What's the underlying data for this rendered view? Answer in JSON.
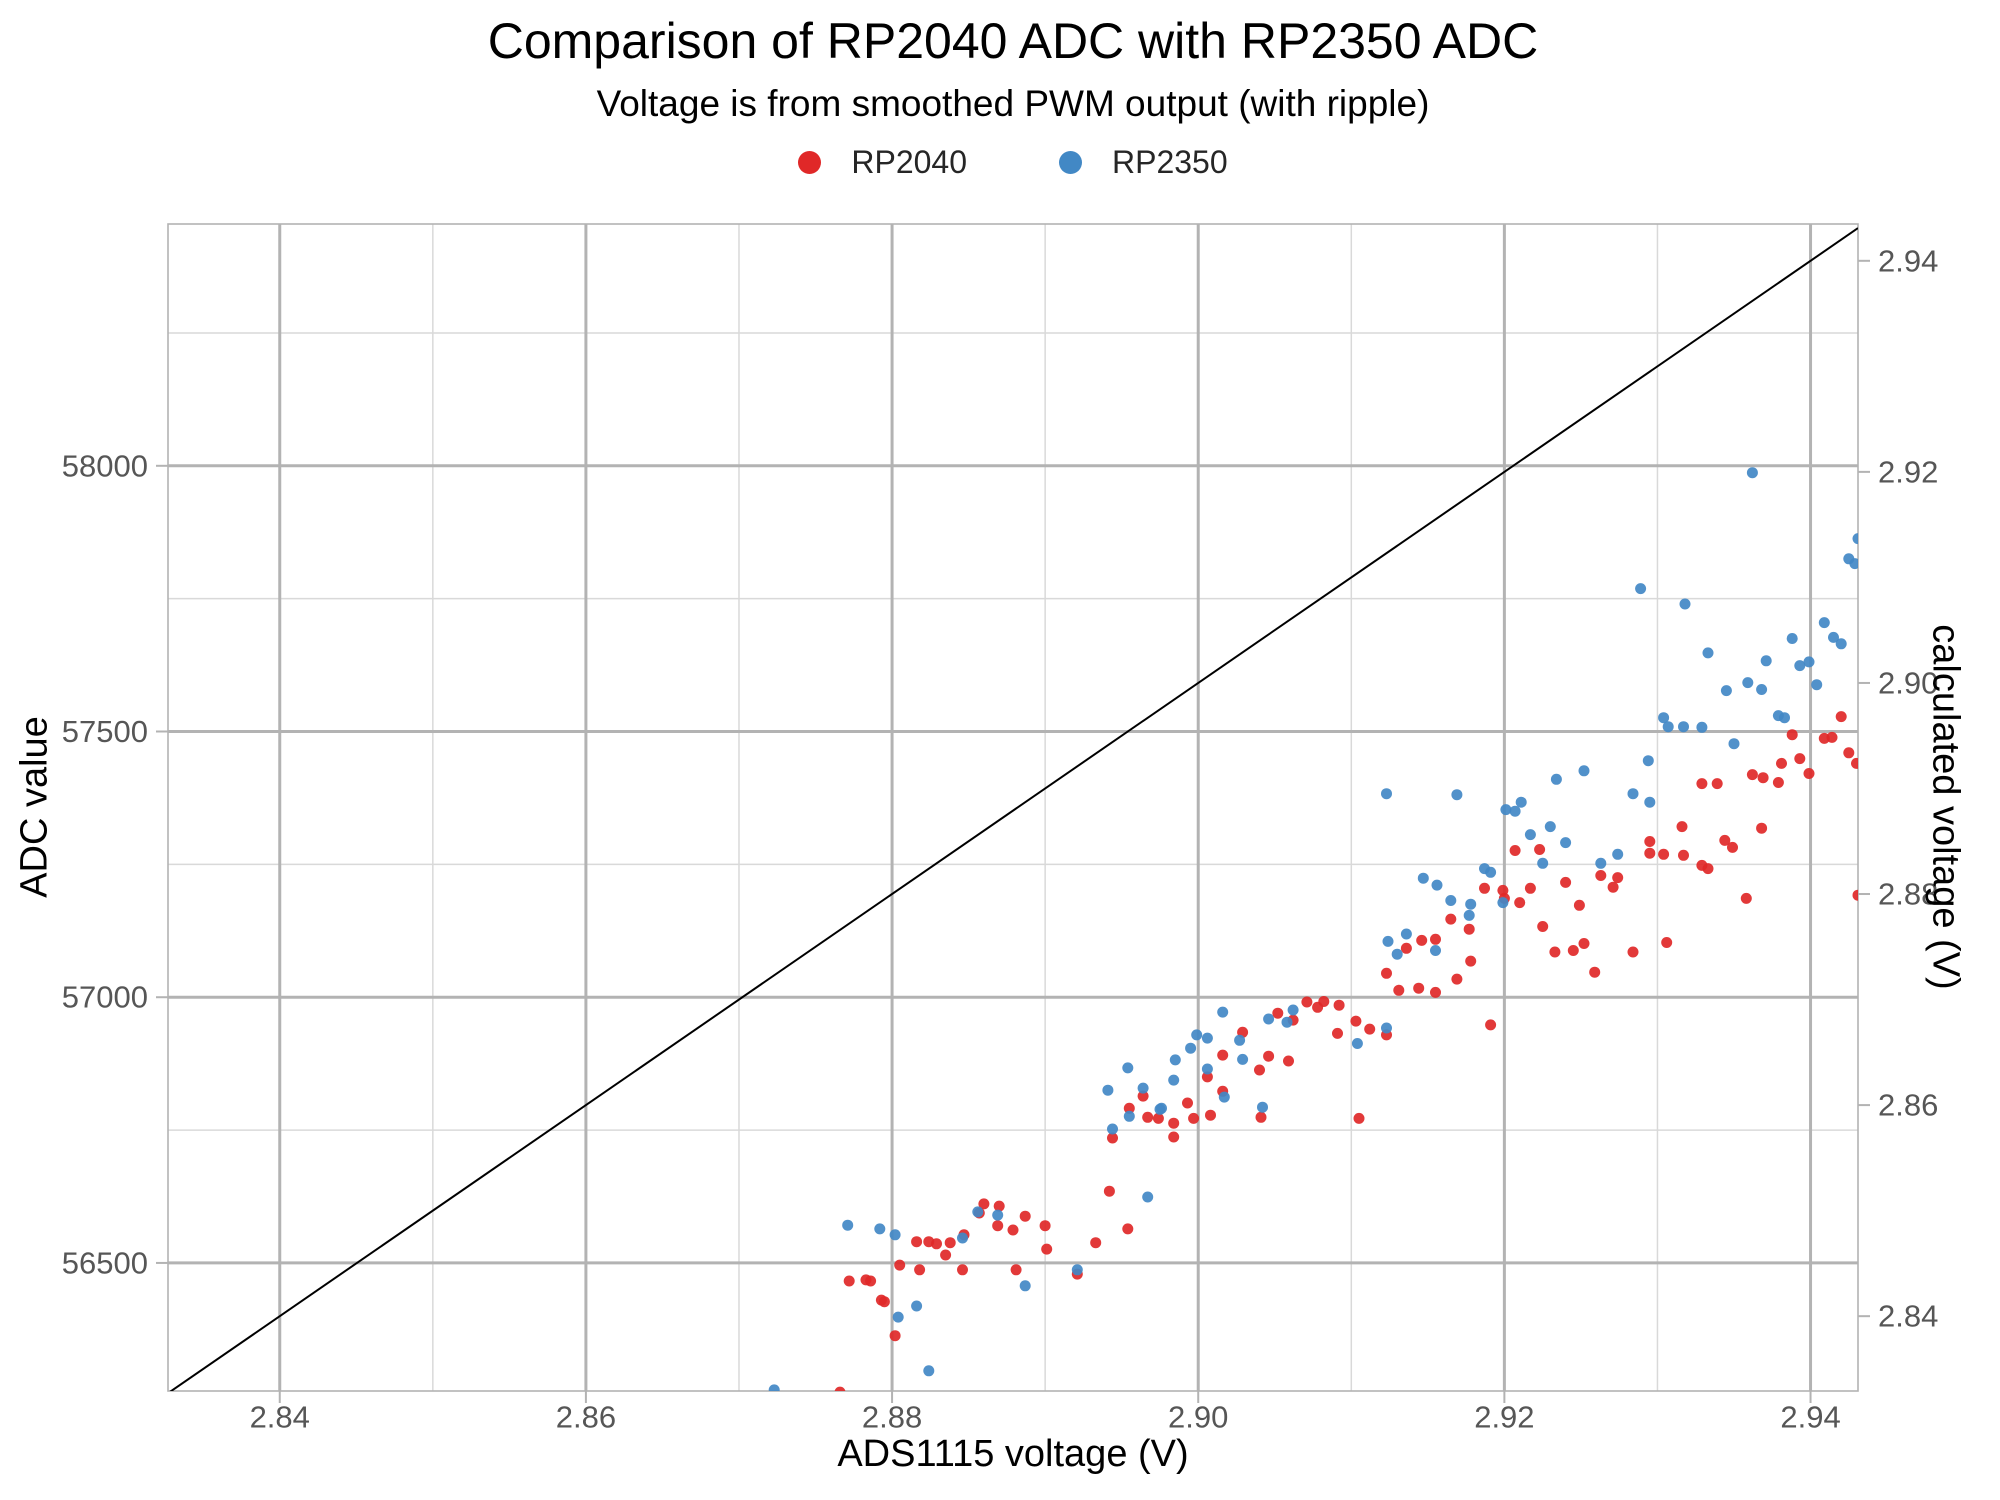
{
  "header": {
    "title": "Comparison of RP2040 ADC with RP2350 ADC",
    "subtitle": "Voltage is from smoothed PWM output (with ripple)"
  },
  "legend": {
    "items": [
      {
        "label": "RP2040",
        "color": "#e02828"
      },
      {
        "label": "RP2350",
        "color": "#4288c5"
      }
    ]
  },
  "axes": {
    "x": {
      "label": "ADS1115 voltage (V)"
    },
    "y_left": {
      "label": "ADC value"
    },
    "y_right": {
      "label": "calculated voltage (V)"
    }
  },
  "chart_data": {
    "type": "scatter",
    "title": "Comparison of RP2040 ADC with RP2350 ADC",
    "subtitle": "Voltage is from smoothed PWM output (with ripple)",
    "xlabel": "ADS1115 voltage (V)",
    "ylabel": "ADC value",
    "ylabel_right": "calculated voltage (V)",
    "x_range": [
      2.8327,
      2.9431
    ],
    "y_range_adc": [
      56259,
      58455
    ],
    "x_ticks": [
      2.84,
      2.86,
      2.88,
      2.9,
      2.92,
      2.94
    ],
    "x_tick_labels": [
      "2.84",
      "2.86",
      "2.88",
      "2.90",
      "2.92",
      "2.94"
    ],
    "x_minor_ticks": [
      2.85,
      2.87,
      2.89,
      2.91,
      2.93
    ],
    "y_ticks_adc": [
      56500,
      57000,
      57500,
      58000
    ],
    "y_tick_labels": [
      "56500",
      "57000",
      "57500",
      "58000"
    ],
    "y_minor_ticks_adc": [
      56750,
      57250,
      57750,
      58250
    ],
    "right_ticks_volts": [
      2.84,
      2.86,
      2.88,
      2.9,
      2.92,
      2.94
    ],
    "right_tick_labels": [
      "2.84",
      "2.86",
      "2.88",
      "2.90",
      "2.92",
      "2.94"
    ],
    "right_axis_conversion": "voltage = adc * 3.3 / 65535",
    "identity_line": {
      "description": "identity reference line: calculated voltage = ADS1115 voltage",
      "color": "#000000"
    },
    "grid": {
      "major_color": "#b3b3b3",
      "minor_color": "#d9d9d9",
      "spine_color": "#b3b3b3",
      "tick_label_color": "#565656"
    },
    "legend_position": "top center",
    "series": [
      {
        "name": "RP2040",
        "color": "#e02828",
        "points": [
          [
            2.8766,
            56257
          ],
          [
            2.8772,
            56466
          ],
          [
            2.8783,
            56468
          ],
          [
            2.8786,
            56466
          ],
          [
            2.8793,
            56430
          ],
          [
            2.8795,
            56427
          ],
          [
            2.8802,
            56363
          ],
          [
            2.8805,
            56496
          ],
          [
            2.8816,
            56540
          ],
          [
            2.8818,
            56487
          ],
          [
            2.8824,
            56540
          ],
          [
            2.8829,
            56536
          ],
          [
            2.8835,
            56515
          ],
          [
            2.8838,
            56538
          ],
          [
            2.8846,
            56487
          ],
          [
            2.8847,
            56553
          ],
          [
            2.8857,
            56594
          ],
          [
            2.886,
            56611
          ],
          [
            2.8869,
            56570
          ],
          [
            2.887,
            56607
          ],
          [
            2.8879,
            56562
          ],
          [
            2.8881,
            56487
          ],
          [
            2.8887,
            56588
          ],
          [
            2.89,
            56570
          ],
          [
            2.8901,
            56526
          ],
          [
            2.8921,
            56479
          ],
          [
            2.8933,
            56538
          ],
          [
            2.8942,
            56635
          ],
          [
            2.8944,
            56735
          ],
          [
            2.8954,
            56564
          ],
          [
            2.8955,
            56791
          ],
          [
            2.8964,
            56814
          ],
          [
            2.8967,
            56774
          ],
          [
            2.8974,
            56772
          ],
          [
            2.8984,
            56763
          ],
          [
            2.8984,
            56737
          ],
          [
            2.8993,
            56801
          ],
          [
            2.8997,
            56772
          ],
          [
            2.9006,
            56850
          ],
          [
            2.9008,
            56778
          ],
          [
            2.9016,
            56823
          ],
          [
            2.9016,
            56891
          ],
          [
            2.9029,
            56934
          ],
          [
            2.904,
            56863
          ],
          [
            2.9041,
            56774
          ],
          [
            2.9046,
            56889
          ],
          [
            2.9052,
            56970
          ],
          [
            2.9059,
            56880
          ],
          [
            2.9062,
            56957
          ],
          [
            2.9071,
            56991
          ],
          [
            2.9078,
            56981
          ],
          [
            2.9082,
            56992
          ],
          [
            2.9091,
            56932
          ],
          [
            2.9092,
            56985
          ],
          [
            2.9103,
            56955
          ],
          [
            2.9105,
            56772
          ],
          [
            2.9112,
            56940
          ],
          [
            2.9123,
            56929
          ],
          [
            2.9123,
            57045
          ],
          [
            2.9131,
            57013
          ],
          [
            2.9136,
            57092
          ],
          [
            2.9144,
            57017
          ],
          [
            2.9146,
            57107
          ],
          [
            2.9155,
            57109
          ],
          [
            2.9155,
            57009
          ],
          [
            2.9165,
            57147
          ],
          [
            2.9169,
            57034
          ],
          [
            2.9177,
            57128
          ],
          [
            2.9178,
            57068
          ],
          [
            2.9187,
            57205
          ],
          [
            2.9191,
            56948
          ],
          [
            2.9199,
            57201
          ],
          [
            2.92,
            57186
          ],
          [
            2.9207,
            57276
          ],
          [
            2.921,
            57178
          ],
          [
            2.9217,
            57205
          ],
          [
            2.9223,
            57278
          ],
          [
            2.9225,
            57133
          ],
          [
            2.9233,
            57085
          ],
          [
            2.924,
            57216
          ],
          [
            2.9245,
            57088
          ],
          [
            2.9249,
            57173
          ],
          [
            2.9252,
            57101
          ],
          [
            2.9259,
            57047
          ],
          [
            2.9263,
            57229
          ],
          [
            2.9271,
            57207
          ],
          [
            2.9274,
            57225
          ],
          [
            2.9284,
            57085
          ],
          [
            2.9295,
            57293
          ],
          [
            2.9295,
            57271
          ],
          [
            2.9304,
            57269
          ],
          [
            2.9306,
            57103
          ],
          [
            2.9316,
            57321
          ],
          [
            2.9317,
            57267
          ],
          [
            2.9329,
            57402
          ],
          [
            2.9329,
            57248
          ],
          [
            2.9333,
            57242
          ],
          [
            2.9339,
            57402
          ],
          [
            2.9344,
            57295
          ],
          [
            2.9349,
            57282
          ],
          [
            2.9358,
            57186
          ],
          [
            2.9362,
            57419
          ],
          [
            2.9368,
            57318
          ],
          [
            2.9369,
            57413
          ],
          [
            2.9379,
            57404
          ],
          [
            2.9381,
            57440
          ],
          [
            2.9388,
            57494
          ],
          [
            2.9393,
            57449
          ],
          [
            2.9399,
            57421
          ],
          [
            2.9409,
            57487
          ],
          [
            2.9414,
            57489
          ],
          [
            2.942,
            57528
          ],
          [
            2.9425,
            57460
          ],
          [
            2.943,
            57440
          ],
          [
            2.9431,
            57192
          ]
        ]
      },
      {
        "name": "RP2350",
        "color": "#4288c5",
        "points": [
          [
            2.8723,
            56261
          ],
          [
            2.8771,
            56571
          ],
          [
            2.8792,
            56564
          ],
          [
            2.8802,
            56553
          ],
          [
            2.8804,
            56398
          ],
          [
            2.8816,
            56419
          ],
          [
            2.8824,
            56297
          ],
          [
            2.8846,
            56547
          ],
          [
            2.8856,
            56596
          ],
          [
            2.8869,
            56590
          ],
          [
            2.8887,
            56457
          ],
          [
            2.8921,
            56487
          ],
          [
            2.8941,
            56825
          ],
          [
            2.8944,
            56752
          ],
          [
            2.8954,
            56867
          ],
          [
            2.8955,
            56776
          ],
          [
            2.8964,
            56829
          ],
          [
            2.8967,
            56624
          ],
          [
            2.8975,
            56789
          ],
          [
            2.8976,
            56791
          ],
          [
            2.8984,
            56844
          ],
          [
            2.8985,
            56882
          ],
          [
            2.8995,
            56904
          ],
          [
            2.8999,
            56929
          ],
          [
            2.9006,
            56923
          ],
          [
            2.9006,
            56865
          ],
          [
            2.9016,
            56972
          ],
          [
            2.9017,
            56812
          ],
          [
            2.9027,
            56919
          ],
          [
            2.9029,
            56883
          ],
          [
            2.9042,
            56793
          ],
          [
            2.9046,
            56959
          ],
          [
            2.9058,
            56953
          ],
          [
            2.9062,
            56976
          ],
          [
            2.9104,
            56913
          ],
          [
            2.9123,
            56942
          ],
          [
            2.9123,
            57383
          ],
          [
            2.9124,
            57105
          ],
          [
            2.913,
            57081
          ],
          [
            2.9136,
            57119
          ],
          [
            2.9147,
            57224
          ],
          [
            2.9155,
            57088
          ],
          [
            2.9156,
            57211
          ],
          [
            2.9165,
            57182
          ],
          [
            2.9169,
            57381
          ],
          [
            2.9177,
            57154
          ],
          [
            2.9178,
            57175
          ],
          [
            2.9187,
            57242
          ],
          [
            2.9191,
            57235
          ],
          [
            2.9199,
            57178
          ],
          [
            2.9201,
            57353
          ],
          [
            2.9207,
            57350
          ],
          [
            2.9211,
            57367
          ],
          [
            2.9217,
            57306
          ],
          [
            2.9225,
            57252
          ],
          [
            2.923,
            57321
          ],
          [
            2.9234,
            57410
          ],
          [
            2.924,
            57291
          ],
          [
            2.9252,
            57426
          ],
          [
            2.9263,
            57252
          ],
          [
            2.9274,
            57269
          ],
          [
            2.9284,
            57383
          ],
          [
            2.9289,
            57769
          ],
          [
            2.9294,
            57445
          ],
          [
            2.9295,
            57367
          ],
          [
            2.9304,
            57526
          ],
          [
            2.9307,
            57509
          ],
          [
            2.9317,
            57509
          ],
          [
            2.9318,
            57740
          ],
          [
            2.9329,
            57508
          ],
          [
            2.9333,
            57648
          ],
          [
            2.9345,
            57577
          ],
          [
            2.935,
            57477
          ],
          [
            2.9359,
            57592
          ],
          [
            2.9362,
            57987
          ],
          [
            2.9368,
            57579
          ],
          [
            2.9371,
            57633
          ],
          [
            2.9379,
            57530
          ],
          [
            2.9383,
            57526
          ],
          [
            2.9388,
            57675
          ],
          [
            2.9393,
            57624
          ],
          [
            2.9399,
            57631
          ],
          [
            2.9404,
            57588
          ],
          [
            2.9409,
            57705
          ],
          [
            2.9415,
            57677
          ],
          [
            2.942,
            57665
          ],
          [
            2.9425,
            57825
          ],
          [
            2.9429,
            57816
          ],
          [
            2.9431,
            57863
          ]
        ]
      }
    ]
  }
}
